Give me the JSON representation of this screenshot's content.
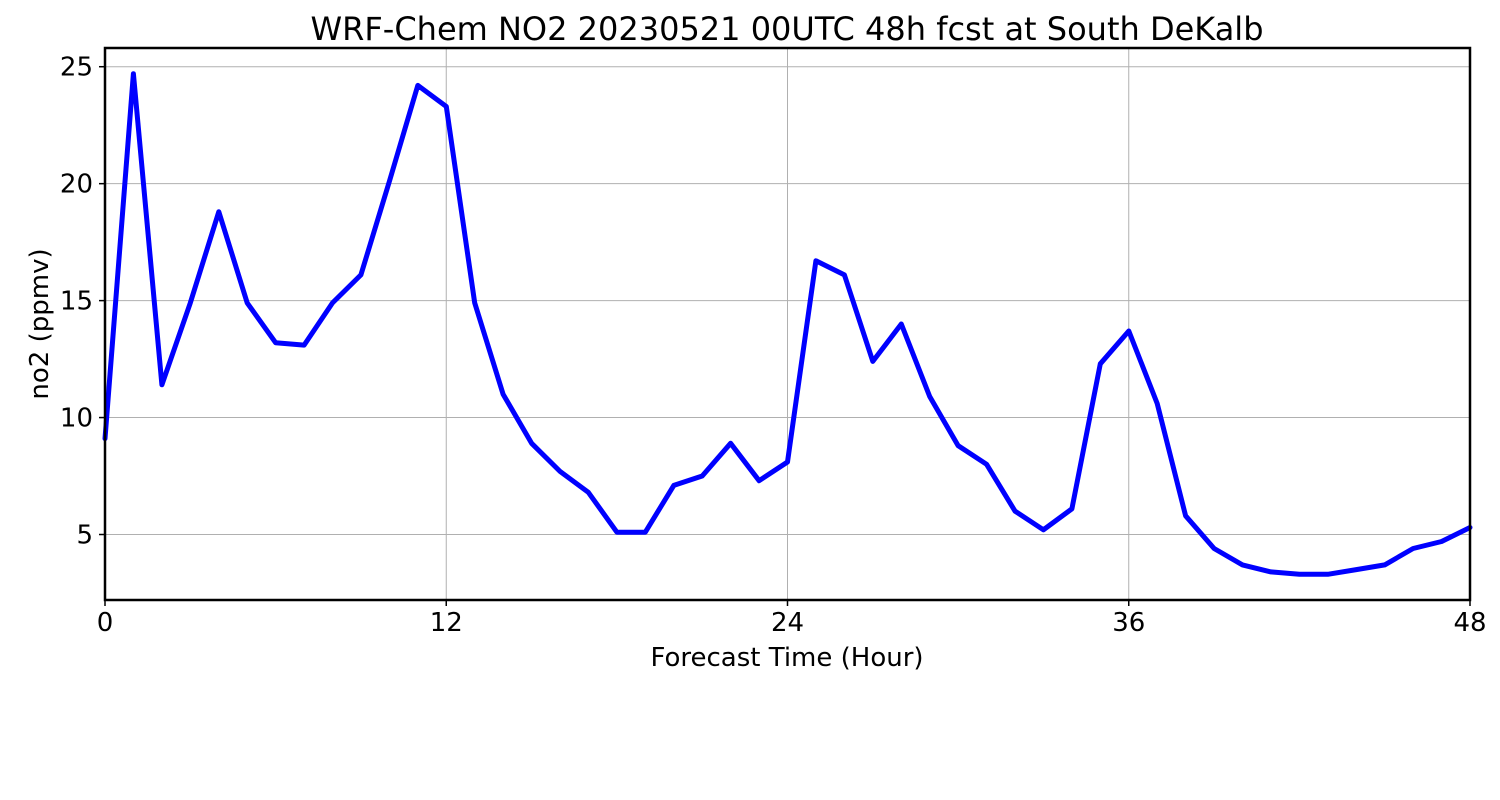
{
  "chart_data": {
    "type": "line",
    "title": "WRF-Chem NO2  20230521 00UTC 48h fcst at South DeKalb",
    "xlabel": "Forecast Time (Hour)",
    "ylabel": "no2  (ppmv)",
    "xlim": [
      0,
      48
    ],
    "ylim": [
      2.2,
      25.8
    ],
    "xticks": [
      0,
      12,
      24,
      36,
      48
    ],
    "yticks": [
      5,
      10,
      15,
      20,
      25
    ],
    "grid": true,
    "line_color": "#0000ff",
    "series": [
      {
        "x": [
          0,
          1,
          2,
          3,
          4,
          5,
          6,
          7,
          8,
          9,
          10,
          11,
          12,
          13,
          14,
          15,
          16,
          17,
          18,
          19,
          20,
          21,
          22,
          23,
          24,
          25,
          26,
          27,
          28,
          29,
          30,
          31,
          32,
          33,
          34,
          35,
          36,
          37,
          38,
          39,
          40,
          41,
          42,
          43,
          44,
          45,
          46,
          47,
          48
        ],
        "values": [
          9.1,
          24.7,
          11.4,
          14.9,
          18.8,
          14.9,
          13.2,
          13.1,
          14.9,
          16.1,
          20.1,
          24.2,
          23.3,
          14.9,
          11.0,
          8.9,
          7.7,
          6.8,
          5.1,
          5.1,
          7.1,
          7.5,
          8.9,
          7.3,
          8.1,
          16.7,
          16.1,
          12.4,
          14.0,
          10.9,
          8.8,
          8.0,
          6.0,
          5.2,
          6.1,
          12.3,
          13.7,
          10.6,
          5.8,
          4.4,
          3.7,
          3.4,
          3.3,
          3.3,
          3.5,
          3.7,
          4.4,
          4.7,
          5.3
        ]
      }
    ]
  }
}
